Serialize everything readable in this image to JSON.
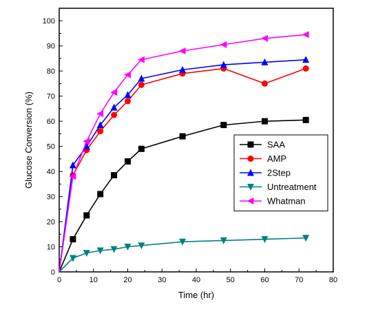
{
  "chart_data": {
    "type": "line",
    "title": "",
    "xlabel": "Time (hr)",
    "ylabel": "Glucose Conversion (%)",
    "xlim": [
      0,
      80
    ],
    "ylim": [
      0,
      105
    ],
    "xticks": [
      0,
      10,
      20,
      30,
      40,
      50,
      60,
      70,
      80
    ],
    "yticks": [
      0,
      10,
      20,
      30,
      40,
      50,
      60,
      70,
      80,
      90,
      100
    ],
    "grid": false,
    "legend_position": "center-right",
    "series": [
      {
        "name": "SAA",
        "color": "#000000",
        "marker": "square",
        "x": [
          0,
          4,
          8,
          12,
          16,
          20,
          24,
          36,
          48,
          60,
          72
        ],
        "y": [
          0,
          13,
          22.5,
          31,
          38.5,
          44,
          49,
          54,
          58.5,
          60,
          60.5
        ]
      },
      {
        "name": "AMP",
        "color": "#ff0000",
        "marker": "circle",
        "x": [
          0,
          4,
          8,
          12,
          16,
          20,
          24,
          36,
          48,
          60,
          72
        ],
        "y": [
          0,
          38.5,
          48.5,
          56,
          62.5,
          68,
          74.5,
          79,
          81,
          75,
          81
        ]
      },
      {
        "name": "2Step",
        "color": "#0000ff",
        "marker": "triangle-up",
        "x": [
          0,
          4,
          8,
          12,
          16,
          20,
          24,
          36,
          48,
          60,
          72
        ],
        "y": [
          0,
          42.5,
          50,
          58.5,
          65.5,
          70.5,
          77,
          80.5,
          82.5,
          83.5,
          84.5
        ]
      },
      {
        "name": "Untreatment",
        "color": "#008080",
        "marker": "triangle-down",
        "x": [
          0,
          4,
          8,
          12,
          16,
          20,
          24,
          36,
          48,
          60,
          72
        ],
        "y": [
          0,
          5.5,
          7.5,
          8.5,
          9,
          10,
          10.5,
          12,
          12.5,
          13,
          13.5
        ]
      },
      {
        "name": "Whatman",
        "color": "#ff00ff",
        "marker": "triangle-left",
        "x": [
          0,
          4,
          8,
          12,
          16,
          20,
          24,
          36,
          48,
          60,
          72
        ],
        "y": [
          0,
          38,
          52,
          63,
          71.5,
          78.5,
          84.5,
          88,
          90.5,
          93,
          94.5
        ]
      }
    ]
  }
}
